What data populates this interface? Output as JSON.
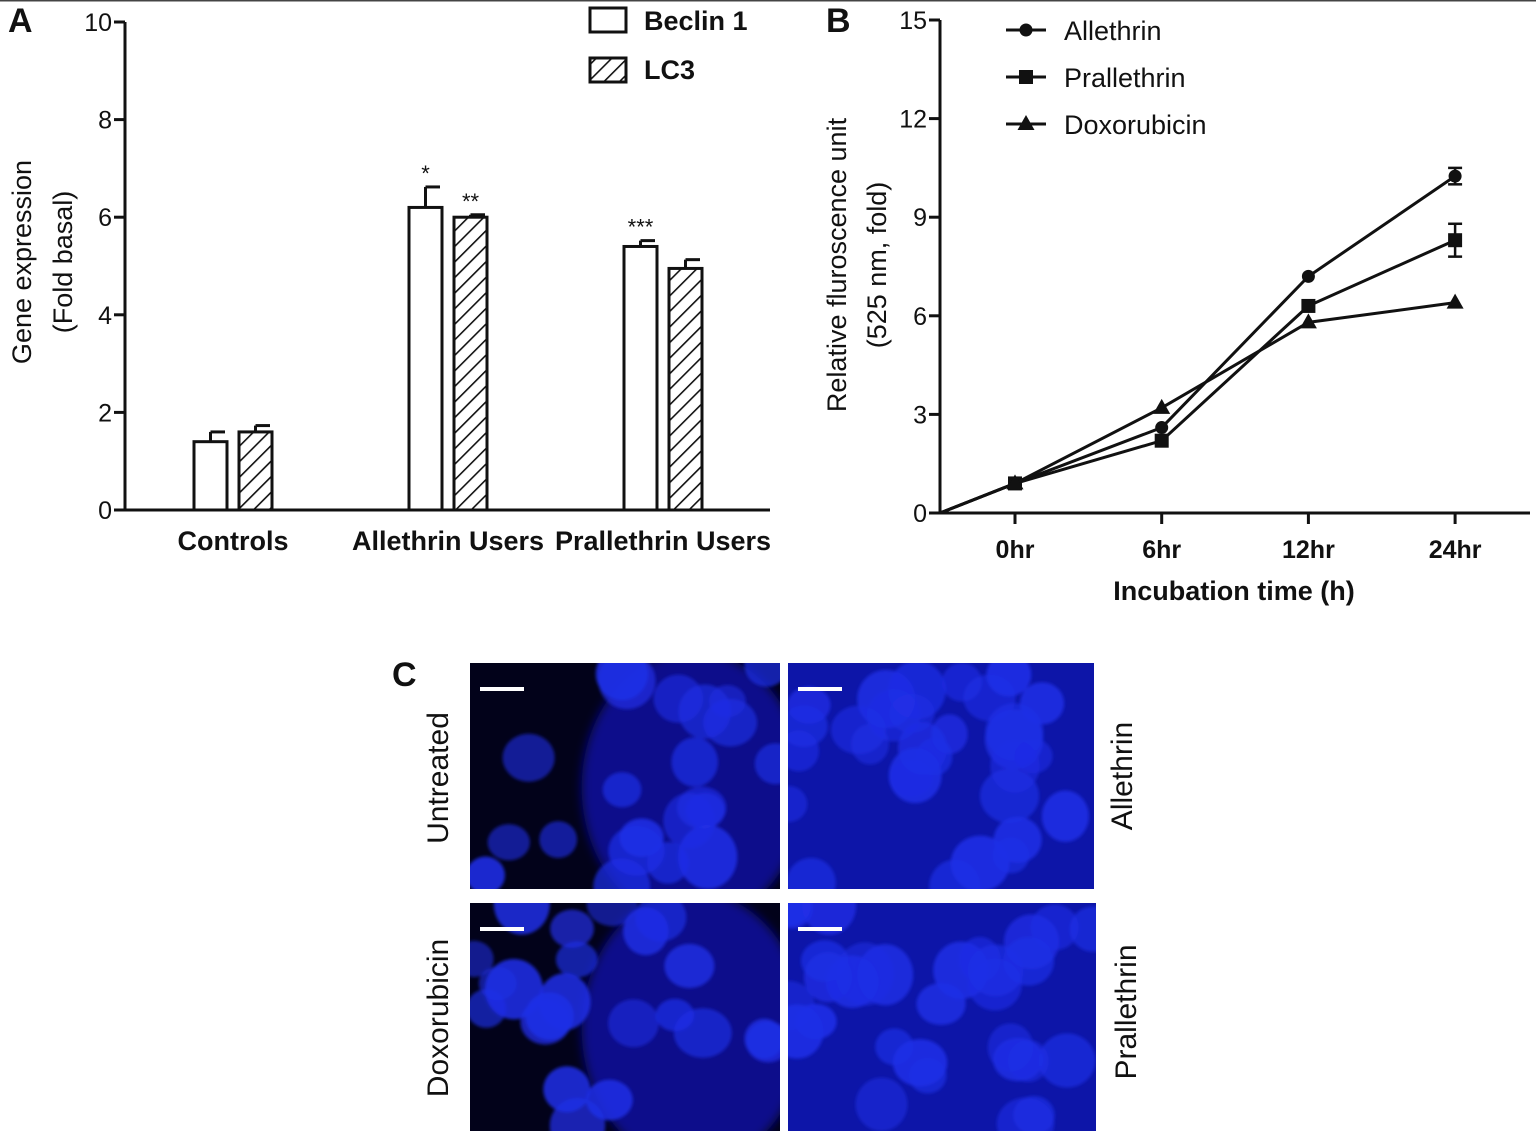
{
  "panels": {
    "a": {
      "letter": "A"
    },
    "b": {
      "letter": "B"
    },
    "c": {
      "letter": "C"
    }
  },
  "chart_data": [
    {
      "type": "bar",
      "panel": "A",
      "ylabel": [
        "Gene expression",
        "(Fold basal)"
      ],
      "xlabel": "",
      "ylim": [
        0,
        10
      ],
      "yticks": [
        0,
        2,
        4,
        6,
        8,
        10
      ],
      "categories": [
        "Controls",
        "Allethrin Users",
        "Prallethrin Users"
      ],
      "series": [
        {
          "name": "Beclin 1",
          "pattern": "open",
          "values": [
            1.4,
            6.2,
            5.4
          ],
          "errors": [
            0.2,
            0.42,
            0.12
          ],
          "marks": [
            "",
            "*",
            "***"
          ]
        },
        {
          "name": "LC3",
          "pattern": "hatched",
          "values": [
            1.6,
            6.0,
            4.95
          ],
          "errors": [
            0.13,
            0.05,
            0.18
          ],
          "marks": [
            "",
            "**",
            ""
          ]
        }
      ],
      "legend_position": "top-right",
      "grid": false
    },
    {
      "type": "line",
      "panel": "B",
      "ylabel": [
        "Relative fluroscence unit",
        "(525 nm, fold)"
      ],
      "xlabel": "Incubation time (h)",
      "ylim": [
        0,
        15
      ],
      "yticks": [
        0,
        3,
        6,
        9,
        12,
        15
      ],
      "x": [
        "0hr",
        "6hr",
        "12hr",
        "24hr"
      ],
      "origin_point": [
        0,
        0
      ],
      "series": [
        {
          "name": "Allethrin",
          "marker": "circle",
          "values": [
            0.9,
            2.6,
            7.2,
            10.25
          ],
          "errors": [
            0.1,
            0.1,
            0.1,
            0.25
          ]
        },
        {
          "name": "Prallethrin",
          "marker": "square",
          "values": [
            0.9,
            2.2,
            6.3,
            8.3
          ],
          "errors": [
            0.1,
            0.1,
            0.1,
            0.5
          ]
        },
        {
          "name": "Doxorubicin",
          "marker": "triangle",
          "values": [
            0.9,
            3.2,
            5.8,
            6.4
          ],
          "errors": [
            0.1,
            0.1,
            0.1,
            0.1
          ]
        }
      ],
      "legend_position": "top-left",
      "grid": false
    }
  ],
  "micrographs": {
    "stain_color": "#1f2ee6",
    "images": [
      {
        "label": "Untreated"
      },
      {
        "label": "Allethrin"
      },
      {
        "label": "Doxorubicin"
      },
      {
        "label": "Prallethrin"
      }
    ]
  }
}
